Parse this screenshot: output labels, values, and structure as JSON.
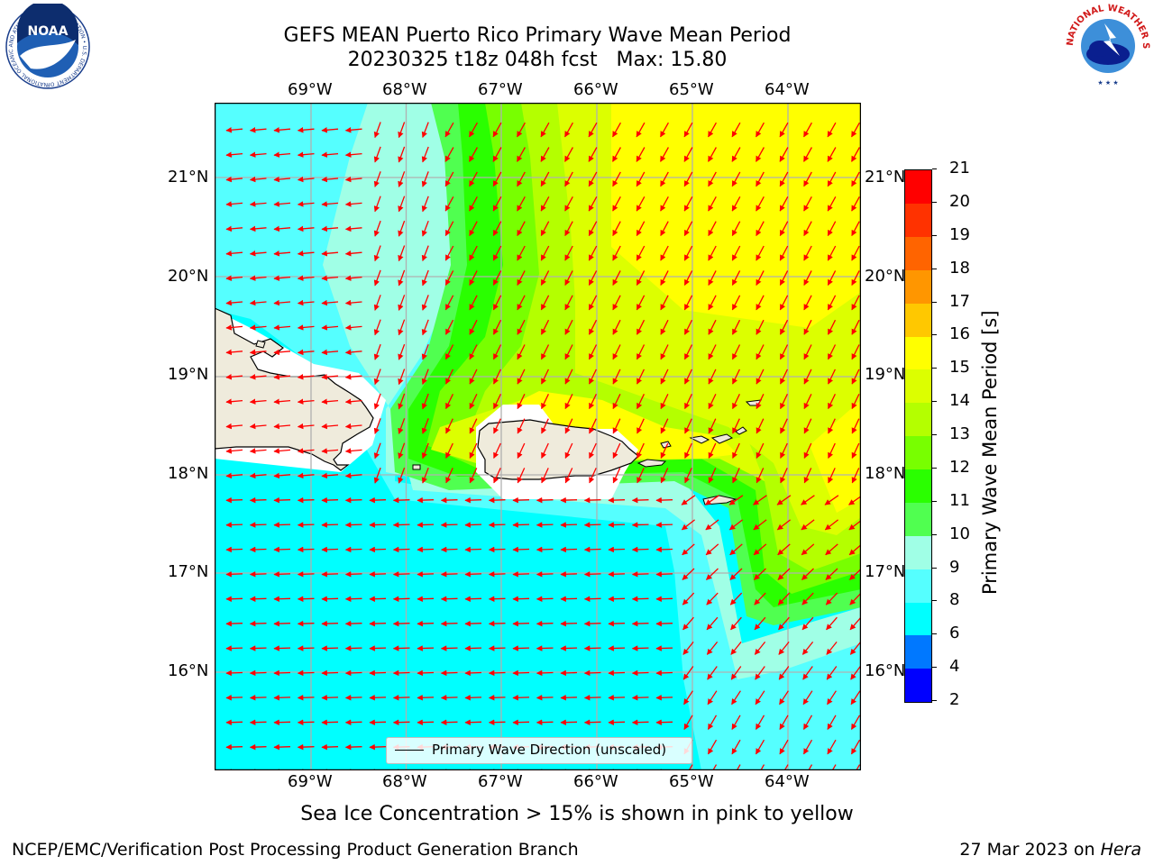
{
  "header": {
    "title_line1": "GEFS MEAN Puerto Rico Primary Wave Mean Period",
    "title_line2": "20230325 t18z 048h fcst   Max: 15.80"
  },
  "logos": {
    "left": "NOAA",
    "left_ring": "NATIONAL OCEANIC AND ATMOSPHERIC ADMINISTRATION • U.S. DEPARTMENT OF COMMERCE",
    "right_ring": "NATIONAL WEATHER SERVICE"
  },
  "map": {
    "lon_ticks": [
      "69°W",
      "68°W",
      "67°W",
      "66°W",
      "65°W",
      "64°W"
    ],
    "lat_ticks": [
      "21°N",
      "20°N",
      "19°N",
      "18°N",
      "17°N",
      "16°N"
    ],
    "legend_label": "Primary Wave Direction (unscaled)",
    "note": "Sea Ice Concentration > 15% is shown in pink to yellow",
    "land_color": "#efebdc",
    "arrow_color": "#ff0000"
  },
  "colorbar": {
    "title": "Primary Wave Mean Period [s]",
    "levels": [
      2,
      4,
      6,
      8,
      9,
      10,
      11,
      12,
      13,
      14,
      15,
      16,
      17,
      18,
      19,
      20,
      21
    ],
    "colors": [
      "#0000ff",
      "#0078ff",
      "#00ffff",
      "#55ffff",
      "#a0ffe6",
      "#50ff50",
      "#2aff00",
      "#78ff00",
      "#b4ff00",
      "#dcff00",
      "#ffff00",
      "#ffc800",
      "#ff9600",
      "#ff6400",
      "#ff3200",
      "#ff0000"
    ]
  },
  "footer": {
    "left": "NCEP/EMC/Verification Post Processing Product Generation Branch",
    "right_prefix": "27 Mar 2023 on ",
    "right_host": "Hera"
  }
}
